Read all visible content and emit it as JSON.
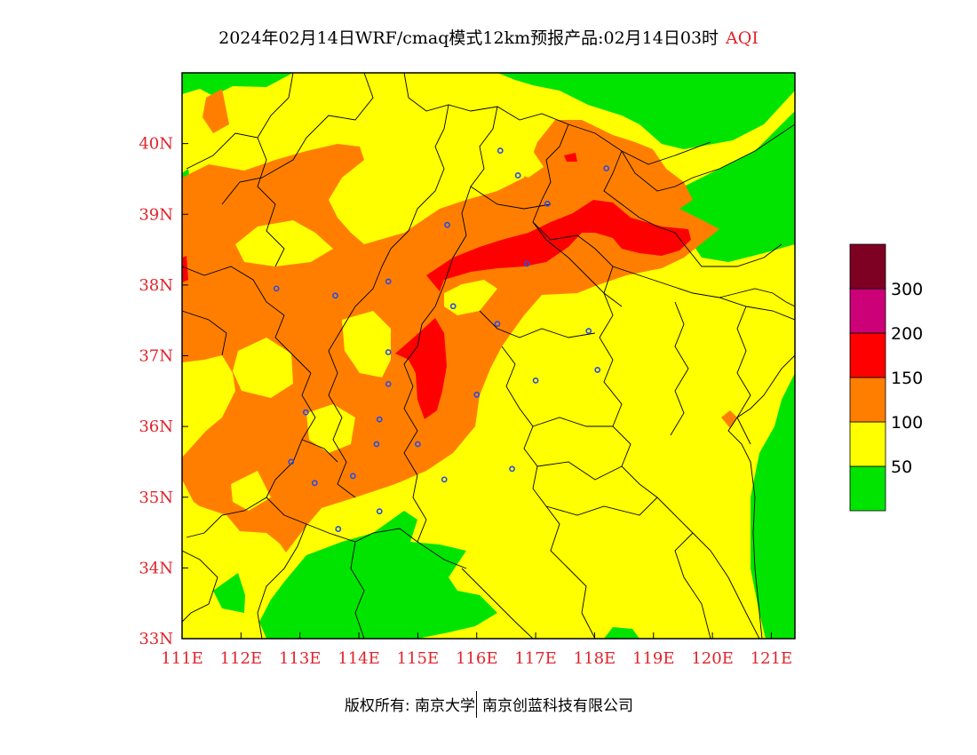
{
  "title": {
    "main": "2024年02月14日WRF/cmaq模式12km预报产品:02月14日03时",
    "aqi": "AQI"
  },
  "footer": {
    "left": "版权所有: 南京大学",
    "right": "南京创蓝科技有限公司"
  },
  "map": {
    "lon_range": [
      111,
      121.4
    ],
    "lat_range": [
      33,
      41
    ],
    "lon_ticks": [
      "111E",
      "112E",
      "113E",
      "114E",
      "115E",
      "116E",
      "117E",
      "118E",
      "119E",
      "120E",
      "121E"
    ],
    "lat_ticks": [
      "33N",
      "34N",
      "35N",
      "36N",
      "37N",
      "38N",
      "39N",
      "40N"
    ],
    "stations": [
      [
        116.4,
        39.9
      ],
      [
        116.7,
        39.55
      ],
      [
        118.2,
        39.65
      ],
      [
        117.2,
        39.15
      ],
      [
        115.5,
        38.85
      ],
      [
        116.85,
        38.3
      ],
      [
        114.5,
        38.05
      ],
      [
        112.6,
        37.95
      ],
      [
        113.6,
        37.85
      ],
      [
        115.6,
        37.7
      ],
      [
        116.35,
        37.45
      ],
      [
        114.5,
        37.05
      ],
      [
        117.9,
        37.35
      ],
      [
        118.05,
        36.8
      ],
      [
        117.0,
        36.65
      ],
      [
        114.5,
        36.6
      ],
      [
        116.0,
        36.45
      ],
      [
        113.1,
        36.2
      ],
      [
        114.35,
        36.1
      ],
      [
        114.3,
        35.75
      ],
      [
        115.0,
        35.75
      ],
      [
        112.85,
        35.5
      ],
      [
        116.6,
        35.4
      ],
      [
        113.25,
        35.2
      ],
      [
        113.9,
        35.3
      ],
      [
        115.45,
        35.25
      ],
      [
        114.35,
        34.8
      ],
      [
        113.65,
        34.55
      ]
    ]
  },
  "legend": {
    "colors": [
      "#00e400",
      "#ffff00",
      "#ff7e00",
      "#ff0000",
      "#cc0077",
      "#7e0023"
    ],
    "labels": [
      "50",
      "100",
      "150",
      "200",
      "300"
    ]
  }
}
